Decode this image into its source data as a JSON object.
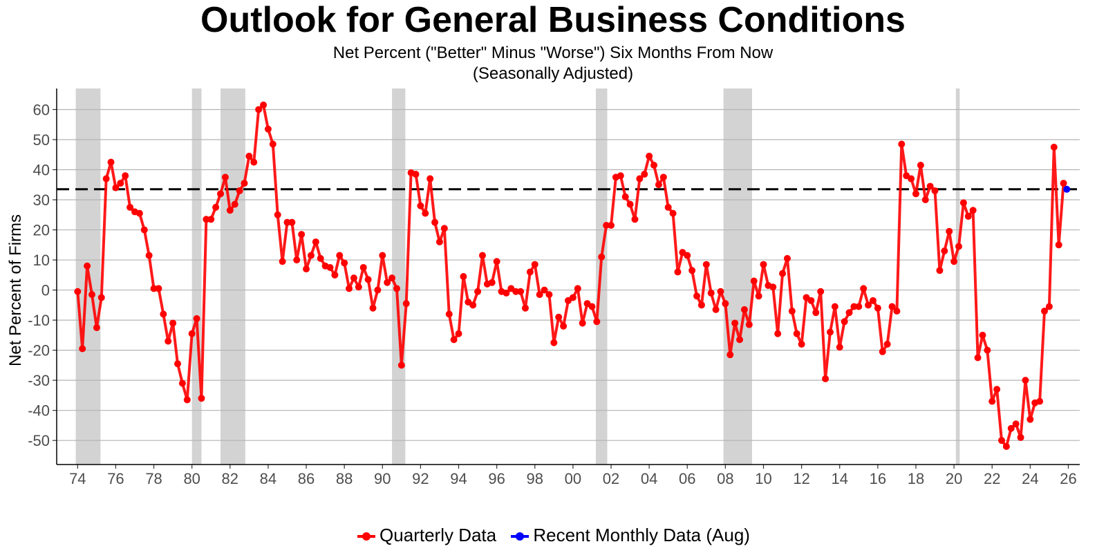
{
  "chart_data": {
    "type": "line",
    "title": "Outlook for General Business Conditions",
    "subtitle": "Net Percent (\"Better\" Minus \"Worse\") Six Months From Now",
    "subtitle2": "(Seasonally Adjusted)",
    "xlabel": "",
    "ylabel": "Net Percent of Firms",
    "xlim": [
      1972.9,
      2026.6
    ],
    "ylim": [
      -58,
      67
    ],
    "yticks": [
      60,
      50,
      40,
      30,
      20,
      10,
      0,
      -10,
      -20,
      -30,
      -40,
      -50
    ],
    "xticks": [
      {
        "x": 1974,
        "label": "74"
      },
      {
        "x": 1976,
        "label": "76"
      },
      {
        "x": 1978,
        "label": "78"
      },
      {
        "x": 1980,
        "label": "80"
      },
      {
        "x": 1982,
        "label": "82"
      },
      {
        "x": 1984,
        "label": "84"
      },
      {
        "x": 1986,
        "label": "86"
      },
      {
        "x": 1988,
        "label": "88"
      },
      {
        "x": 1990,
        "label": "90"
      },
      {
        "x": 1992,
        "label": "92"
      },
      {
        "x": 1994,
        "label": "94"
      },
      {
        "x": 1996,
        "label": "96"
      },
      {
        "x": 1998,
        "label": "98"
      },
      {
        "x": 2000,
        "label": "00"
      },
      {
        "x": 2002,
        "label": "02"
      },
      {
        "x": 2004,
        "label": "04"
      },
      {
        "x": 2006,
        "label": "06"
      },
      {
        "x": 2008,
        "label": "08"
      },
      {
        "x": 2010,
        "label": "10"
      },
      {
        "x": 2012,
        "label": "12"
      },
      {
        "x": 2014,
        "label": "14"
      },
      {
        "x": 2016,
        "label": "16"
      },
      {
        "x": 2018,
        "label": "18"
      },
      {
        "x": 2020,
        "label": "20"
      },
      {
        "x": 2022,
        "label": "22"
      },
      {
        "x": 2024,
        "label": "24"
      },
      {
        "x": 2026,
        "label": "26"
      }
    ],
    "grid": "horizontal",
    "reference_line": {
      "y": 33.5,
      "style": "dashed"
    },
    "recessions": [
      [
        1973.9,
        1975.2
      ],
      [
        1980.0,
        1980.5
      ],
      [
        1981.5,
        1982.8
      ],
      [
        1990.5,
        1991.2
      ],
      [
        2001.2,
        2001.8
      ],
      [
        2007.9,
        2009.4
      ],
      [
        2020.1,
        2020.3
      ]
    ],
    "legend_position": "bottom",
    "series": [
      {
        "name": "Quarterly Data",
        "color": "#ff0000",
        "points": [
          [
            1974.0,
            -0.5
          ],
          [
            1974.25,
            -19.5
          ],
          [
            1974.5,
            8
          ],
          [
            1974.75,
            -1.5
          ],
          [
            1975.0,
            -12.5
          ],
          [
            1975.25,
            -2.5
          ],
          [
            1975.5,
            37
          ],
          [
            1975.75,
            42.5
          ],
          [
            1976.0,
            34
          ],
          [
            1976.25,
            35.5
          ],
          [
            1976.5,
            38
          ],
          [
            1976.75,
            27.5
          ],
          [
            1977.0,
            26
          ],
          [
            1977.25,
            25.5
          ],
          [
            1977.5,
            20
          ],
          [
            1977.75,
            11.5
          ],
          [
            1978.0,
            0.5
          ],
          [
            1978.25,
            0.5
          ],
          [
            1978.5,
            -8
          ],
          [
            1978.75,
            -17
          ],
          [
            1979.0,
            -11
          ],
          [
            1979.25,
            -24.5
          ],
          [
            1979.5,
            -31
          ],
          [
            1979.75,
            -36.5
          ],
          [
            1980.0,
            -14.5
          ],
          [
            1980.25,
            -9.5
          ],
          [
            1980.5,
            -36
          ],
          [
            1980.75,
            23.5
          ],
          [
            1981.0,
            23.5
          ],
          [
            1981.25,
            27.5
          ],
          [
            1981.5,
            32
          ],
          [
            1981.75,
            37.5
          ],
          [
            1982.0,
            26.5
          ],
          [
            1982.25,
            28.5
          ],
          [
            1982.5,
            33
          ],
          [
            1982.75,
            35.5
          ],
          [
            1983.0,
            44.5
          ],
          [
            1983.25,
            42.5
          ],
          [
            1983.5,
            60
          ],
          [
            1983.75,
            61.5
          ],
          [
            1984.0,
            53.5
          ],
          [
            1984.25,
            48.5
          ],
          [
            1984.5,
            25
          ],
          [
            1984.75,
            9.5
          ],
          [
            1985.0,
            22.5
          ],
          [
            1985.25,
            22.5
          ],
          [
            1985.5,
            10
          ],
          [
            1985.75,
            18.5
          ],
          [
            1986.0,
            7
          ],
          [
            1986.25,
            11.5
          ],
          [
            1986.5,
            16
          ],
          [
            1986.75,
            10.5
          ],
          [
            1987.0,
            8
          ],
          [
            1987.25,
            7.5
          ],
          [
            1987.5,
            5
          ],
          [
            1987.75,
            11.5
          ],
          [
            1988.0,
            9
          ],
          [
            1988.25,
            0.5
          ],
          [
            1988.5,
            4
          ],
          [
            1988.75,
            1
          ],
          [
            1989.0,
            7.5
          ],
          [
            1989.25,
            3.5
          ],
          [
            1989.5,
            -6
          ],
          [
            1989.75,
            0
          ],
          [
            1990.0,
            11.5
          ],
          [
            1990.25,
            2.5
          ],
          [
            1990.5,
            4
          ],
          [
            1990.75,
            0.5
          ],
          [
            1991.0,
            -25
          ],
          [
            1991.25,
            -4.5
          ],
          [
            1991.5,
            39
          ],
          [
            1991.75,
            38.5
          ],
          [
            1992.0,
            28
          ],
          [
            1992.25,
            25.5
          ],
          [
            1992.5,
            37
          ],
          [
            1992.75,
            22.5
          ],
          [
            1993.0,
            16
          ],
          [
            1993.25,
            20.5
          ],
          [
            1993.5,
            -8
          ],
          [
            1993.75,
            -16.5
          ],
          [
            1994.0,
            -14.5
          ],
          [
            1994.25,
            4.5
          ],
          [
            1994.5,
            -4
          ],
          [
            1994.75,
            -5
          ],
          [
            1995.0,
            -0.5
          ],
          [
            1995.25,
            11.5
          ],
          [
            1995.5,
            2
          ],
          [
            1995.75,
            2.5
          ],
          [
            1996.0,
            9.5
          ],
          [
            1996.25,
            -0.5
          ],
          [
            1996.5,
            -1
          ],
          [
            1996.75,
            0.5
          ],
          [
            1997.0,
            -0.5
          ],
          [
            1997.25,
            -0.5
          ],
          [
            1997.5,
            -6
          ],
          [
            1997.75,
            6
          ],
          [
            1998.0,
            8.5
          ],
          [
            1998.25,
            -1.5
          ],
          [
            1998.5,
            0
          ],
          [
            1998.75,
            -1.5
          ],
          [
            1999.0,
            -17.5
          ],
          [
            1999.25,
            -9
          ],
          [
            1999.5,
            -12
          ],
          [
            1999.75,
            -3.5
          ],
          [
            2000.0,
            -2.5
          ],
          [
            2000.25,
            0.5
          ],
          [
            2000.5,
            -11
          ],
          [
            2000.75,
            -4.5
          ],
          [
            2001.0,
            -5.5
          ],
          [
            2001.25,
            -10.5
          ],
          [
            2001.5,
            11
          ],
          [
            2001.75,
            21.5
          ],
          [
            2002.0,
            21.5
          ],
          [
            2002.25,
            37.5
          ],
          [
            2002.5,
            38
          ],
          [
            2002.75,
            31
          ],
          [
            2003.0,
            28.5
          ],
          [
            2003.25,
            23.5
          ],
          [
            2003.5,
            37
          ],
          [
            2003.75,
            38.5
          ],
          [
            2004.0,
            44.5
          ],
          [
            2004.25,
            41.5
          ],
          [
            2004.5,
            35
          ],
          [
            2004.75,
            37.5
          ],
          [
            2005.0,
            27.5
          ],
          [
            2005.25,
            25.5
          ],
          [
            2005.5,
            6
          ],
          [
            2005.75,
            12.5
          ],
          [
            2006.0,
            11.5
          ],
          [
            2006.25,
            6.5
          ],
          [
            2006.5,
            -2
          ],
          [
            2006.75,
            -5
          ],
          [
            2007.0,
            8.5
          ],
          [
            2007.25,
            -1
          ],
          [
            2007.5,
            -6.5
          ],
          [
            2007.75,
            -0.5
          ],
          [
            2008.0,
            -4.5
          ],
          [
            2008.25,
            -21.5
          ],
          [
            2008.5,
            -11
          ],
          [
            2008.75,
            -16.5
          ],
          [
            2009.0,
            -6.5
          ],
          [
            2009.25,
            -11.5
          ],
          [
            2009.5,
            3
          ],
          [
            2009.75,
            -2
          ],
          [
            2010.0,
            8.5
          ],
          [
            2010.25,
            1.5
          ],
          [
            2010.5,
            1
          ],
          [
            2010.75,
            -14.5
          ],
          [
            2011.0,
            5.5
          ],
          [
            2011.25,
            10.5
          ],
          [
            2011.5,
            -7
          ],
          [
            2011.75,
            -14.5
          ],
          [
            2012.0,
            -18
          ],
          [
            2012.25,
            -2.5
          ],
          [
            2012.5,
            -3.5
          ],
          [
            2012.75,
            -7.5
          ],
          [
            2013.0,
            -0.5
          ],
          [
            2013.25,
            -29.5
          ],
          [
            2013.5,
            -14
          ],
          [
            2013.75,
            -5.5
          ],
          [
            2014.0,
            -19
          ],
          [
            2014.25,
            -10.5
          ],
          [
            2014.5,
            -7.5
          ],
          [
            2014.75,
            -5.5
          ],
          [
            2015.0,
            -5.5
          ],
          [
            2015.25,
            0.5
          ],
          [
            2015.5,
            -5
          ],
          [
            2015.75,
            -3.5
          ],
          [
            2016.0,
            -6
          ],
          [
            2016.25,
            -20.5
          ],
          [
            2016.5,
            -18
          ],
          [
            2016.75,
            -5.5
          ],
          [
            2017.0,
            -7
          ],
          [
            2017.25,
            48.5
          ],
          [
            2017.5,
            38
          ],
          [
            2017.75,
            37
          ],
          [
            2018.0,
            32
          ],
          [
            2018.25,
            41.5
          ],
          [
            2018.5,
            30
          ],
          [
            2018.75,
            34.5
          ],
          [
            2019.0,
            33
          ],
          [
            2019.25,
            6.5
          ],
          [
            2019.5,
            13
          ],
          [
            2019.75,
            19.5
          ],
          [
            2020.0,
            9.5
          ],
          [
            2020.25,
            14.5
          ],
          [
            2020.5,
            29
          ],
          [
            2020.75,
            24.5
          ],
          [
            2021.0,
            26.5
          ],
          [
            2021.25,
            -22.5
          ],
          [
            2021.5,
            -15
          ],
          [
            2021.75,
            -20
          ],
          [
            2022.0,
            -37
          ],
          [
            2022.25,
            -33
          ],
          [
            2022.5,
            -50
          ],
          [
            2022.75,
            -52
          ],
          [
            2023.0,
            -46
          ],
          [
            2023.25,
            -44.5
          ],
          [
            2023.5,
            -49
          ],
          [
            2023.75,
            -30
          ],
          [
            2024.0,
            -43
          ],
          [
            2024.25,
            -37.5
          ],
          [
            2024.5,
            -37
          ],
          [
            2024.75,
            -7
          ],
          [
            2025.0,
            -5.5
          ],
          [
            2025.25,
            47.5
          ],
          [
            2025.5,
            15
          ],
          [
            2025.75,
            35.5
          ]
        ]
      },
      {
        "name": "Recent Monthly Data (Aug)",
        "color": "#0000ff",
        "points": [
          [
            2025.92,
            33.5
          ]
        ]
      }
    ]
  }
}
